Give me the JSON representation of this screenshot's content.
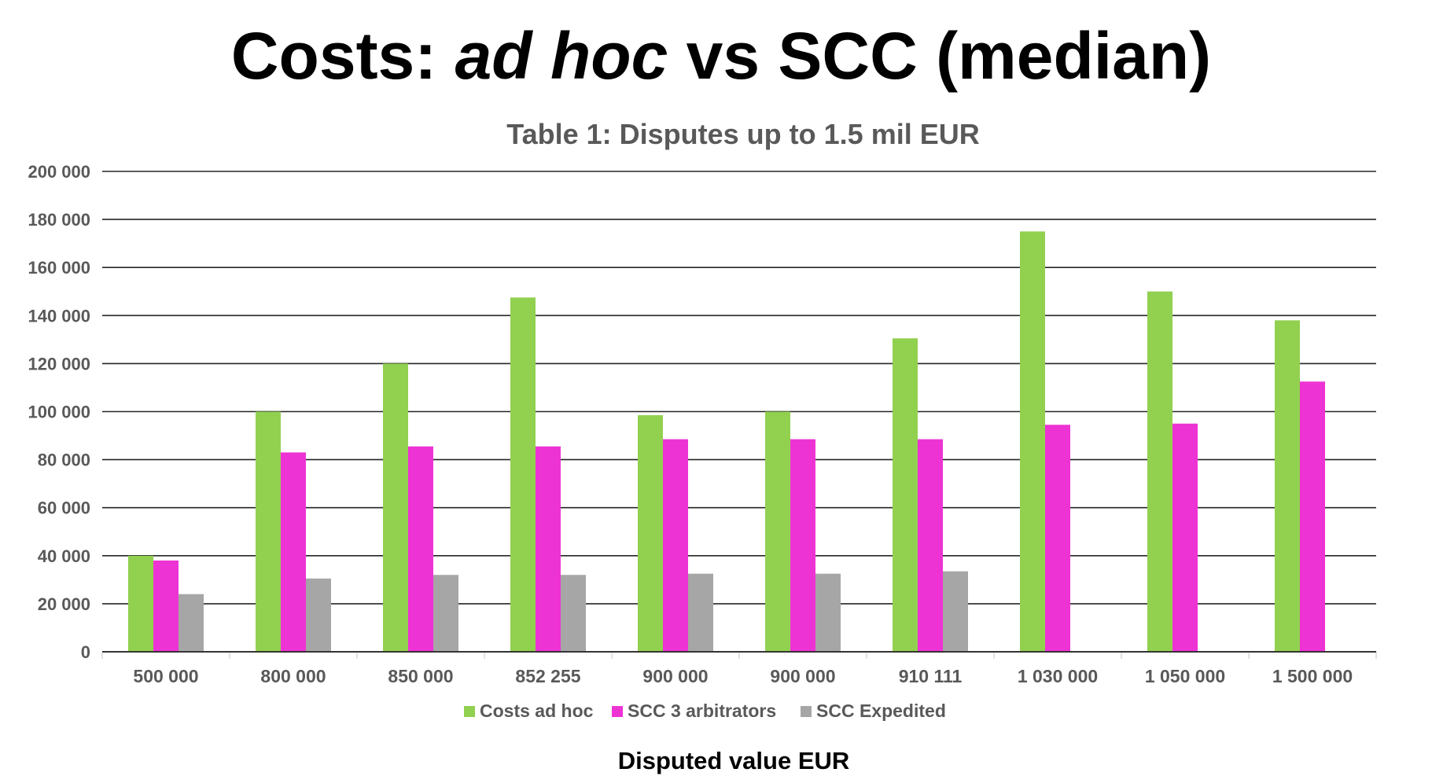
{
  "header": {
    "title_part1": "Costs: ",
    "title_italic": "ad hoc",
    "title_part2": " vs SCC (median)"
  },
  "chart_data": {
    "type": "bar",
    "title": "Table 1: Disputes up to 1.5 mil EUR",
    "xlabel": "Disputed value EUR",
    "ylabel": "",
    "ylim": [
      0,
      200000
    ],
    "yticks": [
      0,
      20000,
      40000,
      60000,
      80000,
      100000,
      120000,
      140000,
      160000,
      180000,
      200000
    ],
    "ytick_labels": [
      "0",
      "20 000",
      "40 000",
      "60 000",
      "80 000",
      "100 000",
      "120 000",
      "140 000",
      "160 000",
      "180 000",
      "200 000"
    ],
    "grid": true,
    "legend_position": "bottom",
    "categories": [
      "500 000",
      "800 000",
      "850 000",
      "852 255",
      "900 000",
      "900 000",
      "910 111",
      "1 030 000",
      "1 050 000",
      "1 500 000"
    ],
    "series": [
      {
        "name": "Costs ad hoc",
        "color": "#92D050",
        "values": [
          40000,
          100000,
          120000,
          147500,
          98500,
          100000,
          130500,
          175000,
          150000,
          138000
        ]
      },
      {
        "name": "SCC 3 arbitrators",
        "color": "#EE33D4",
        "values": [
          38000,
          83000,
          85500,
          85500,
          88500,
          88500,
          88500,
          94500,
          95000,
          112500
        ]
      },
      {
        "name": "SCC Expedited",
        "color": "#A6A6A6",
        "values": [
          24000,
          30500,
          32000,
          32000,
          32500,
          32500,
          33500,
          null,
          null,
          null
        ]
      }
    ]
  }
}
